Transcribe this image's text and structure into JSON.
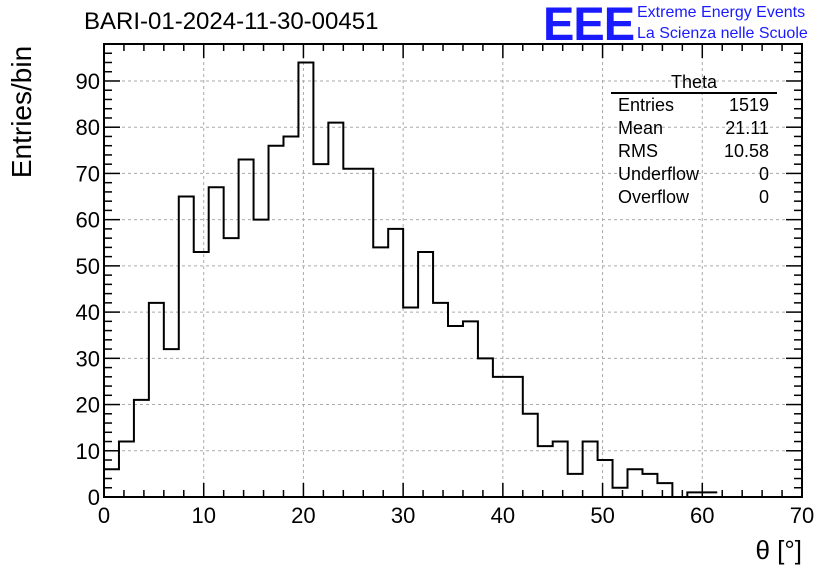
{
  "title": "BARI-01-2024-11-30-00451",
  "logo": {
    "mark": "EEE",
    "line1": "Extreme Energy Events",
    "line2": "La Scienza nelle Scuole",
    "color": "#1a1aff"
  },
  "stats": {
    "title": "Theta",
    "rows": [
      {
        "label": "Entries",
        "value": "1519"
      },
      {
        "label": "Mean",
        "value": "21.11"
      },
      {
        "label": "RMS",
        "value": "10.58"
      },
      {
        "label": "Underflow",
        "value": "0"
      },
      {
        "label": "Overflow",
        "value": "0"
      }
    ]
  },
  "chart_data": {
    "type": "bar",
    "style": "step-histogram",
    "xlabel": "θ [°]",
    "ylabel": "Entries/bin",
    "xlim": [
      0,
      70
    ],
    "ylim": [
      0,
      98
    ],
    "bin_width": 1.5,
    "bin_start": 0,
    "values": [
      6,
      12,
      21,
      42,
      32,
      65,
      53,
      67,
      56,
      73,
      60,
      76,
      78,
      94,
      72,
      81,
      71,
      71,
      54,
      58,
      41,
      53,
      42,
      37,
      38,
      30,
      26,
      26,
      18,
      11,
      12,
      5,
      12,
      8,
      2,
      6,
      5,
      3,
      0,
      1,
      1
    ],
    "xticks": [
      0,
      10,
      20,
      30,
      40,
      50,
      60,
      70
    ],
    "yticks": [
      0,
      10,
      20,
      30,
      40,
      50,
      60,
      70,
      80,
      90
    ],
    "grid": true,
    "line_color": "#000000",
    "grid_color": "#aaaaaa"
  }
}
